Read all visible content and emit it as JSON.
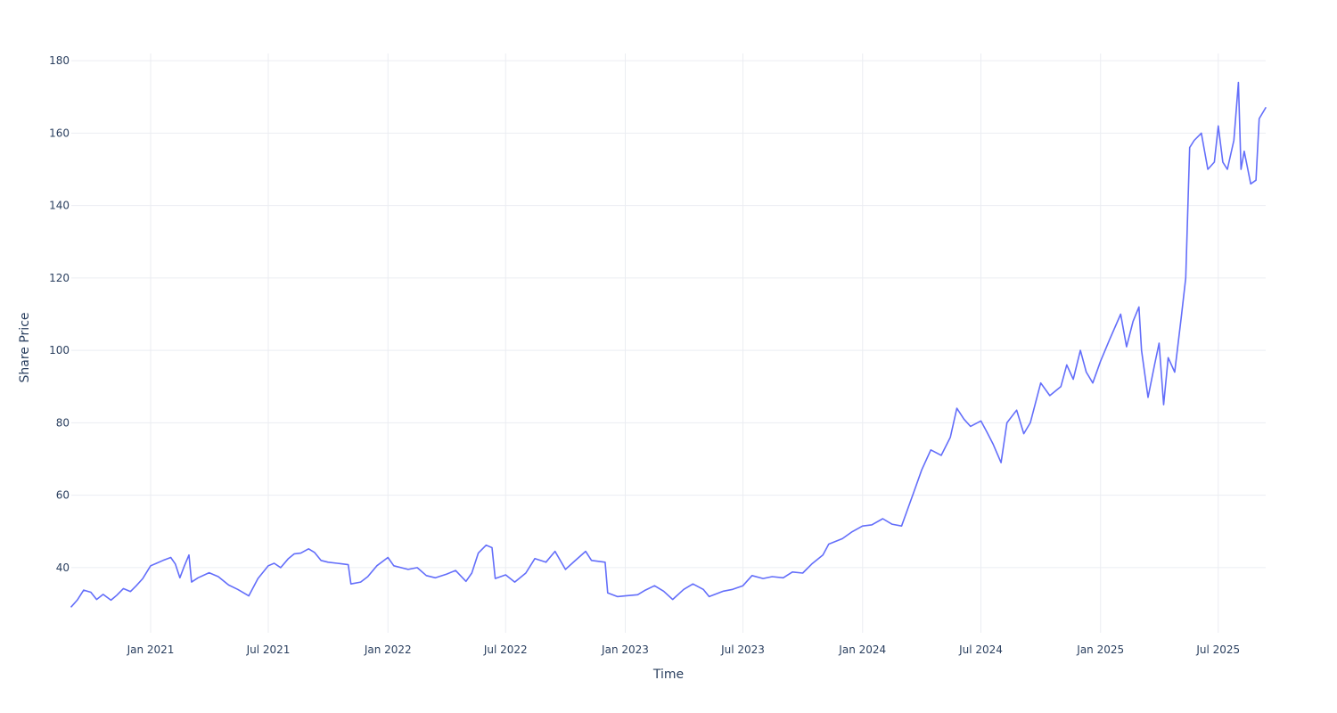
{
  "chart_data": {
    "type": "line",
    "title": "",
    "xlabel": "Time",
    "ylabel": "Share Price",
    "grid": true,
    "legend": "none",
    "xlim": [
      "2020-09-01",
      "2025-09-12"
    ],
    "ylim": [
      22,
      182
    ],
    "x_ticks": [
      {
        "date": "2021-01-01",
        "label": "Jan 2021"
      },
      {
        "date": "2021-07-01",
        "label": "Jul 2021"
      },
      {
        "date": "2022-01-01",
        "label": "Jan 2022"
      },
      {
        "date": "2022-07-01",
        "label": "Jul 2022"
      },
      {
        "date": "2023-01-01",
        "label": "Jan 2023"
      },
      {
        "date": "2023-07-01",
        "label": "Jul 2023"
      },
      {
        "date": "2024-01-01",
        "label": "Jan 2024"
      },
      {
        "date": "2024-07-01",
        "label": "Jul 2024"
      },
      {
        "date": "2025-01-01",
        "label": "Jan 2025"
      },
      {
        "date": "2025-07-01",
        "label": "Jul 2025"
      }
    ],
    "y_ticks": [
      40,
      60,
      80,
      100,
      120,
      140,
      160,
      180
    ],
    "series": [
      {
        "color": "#636efa",
        "points": [
          [
            "2020-09-01",
            29.2
          ],
          [
            "2020-09-10",
            31.0
          ],
          [
            "2020-09-20",
            33.8
          ],
          [
            "2020-10-01",
            33.2
          ],
          [
            "2020-10-10",
            31.2
          ],
          [
            "2020-10-20",
            32.6
          ],
          [
            "2020-11-01",
            31.0
          ],
          [
            "2020-11-10",
            32.4
          ],
          [
            "2020-11-20",
            34.2
          ],
          [
            "2020-12-01",
            33.4
          ],
          [
            "2020-12-10",
            35.0
          ],
          [
            "2020-12-20",
            37.0
          ],
          [
            "2021-01-01",
            40.5
          ],
          [
            "2021-01-10",
            41.2
          ],
          [
            "2021-01-20",
            42.0
          ],
          [
            "2021-02-01",
            42.8
          ],
          [
            "2021-02-08",
            41.0
          ],
          [
            "2021-02-15",
            37.2
          ],
          [
            "2021-02-22",
            40.5
          ],
          [
            "2021-03-01",
            43.5
          ],
          [
            "2021-03-05",
            36.0
          ],
          [
            "2021-03-15",
            37.2
          ],
          [
            "2021-04-01",
            38.6
          ],
          [
            "2021-04-15",
            37.5
          ],
          [
            "2021-05-01",
            35.2
          ],
          [
            "2021-05-15",
            34.0
          ],
          [
            "2021-06-01",
            32.2
          ],
          [
            "2021-06-15",
            37.0
          ],
          [
            "2021-07-01",
            40.5
          ],
          [
            "2021-07-10",
            41.2
          ],
          [
            "2021-07-20",
            40.0
          ],
          [
            "2021-08-01",
            42.5
          ],
          [
            "2021-08-10",
            43.8
          ],
          [
            "2021-08-20",
            44.0
          ],
          [
            "2021-09-01",
            45.2
          ],
          [
            "2021-09-10",
            44.2
          ],
          [
            "2021-09-20",
            42.0
          ],
          [
            "2021-10-01",
            41.5
          ],
          [
            "2021-10-15",
            41.2
          ],
          [
            "2021-11-01",
            40.8
          ],
          [
            "2021-11-05",
            35.5
          ],
          [
            "2021-11-20",
            36.0
          ],
          [
            "2021-12-01",
            37.5
          ],
          [
            "2021-12-15",
            40.5
          ],
          [
            "2022-01-01",
            42.8
          ],
          [
            "2022-01-10",
            40.5
          ],
          [
            "2022-02-01",
            39.5
          ],
          [
            "2022-02-15",
            40.0
          ],
          [
            "2022-03-01",
            37.8
          ],
          [
            "2022-03-15",
            37.2
          ],
          [
            "2022-04-01",
            38.2
          ],
          [
            "2022-04-15",
            39.2
          ],
          [
            "2022-05-01",
            36.2
          ],
          [
            "2022-05-10",
            38.5
          ],
          [
            "2022-05-20",
            44.0
          ],
          [
            "2022-06-01",
            46.2
          ],
          [
            "2022-06-10",
            45.5
          ],
          [
            "2022-06-15",
            37.0
          ],
          [
            "2022-07-01",
            38.0
          ],
          [
            "2022-07-15",
            36.0
          ],
          [
            "2022-08-01",
            38.5
          ],
          [
            "2022-08-15",
            42.5
          ],
          [
            "2022-09-01",
            41.5
          ],
          [
            "2022-09-15",
            44.5
          ],
          [
            "2022-10-01",
            39.5
          ],
          [
            "2022-10-15",
            41.8
          ],
          [
            "2022-11-01",
            44.5
          ],
          [
            "2022-11-10",
            42.0
          ],
          [
            "2022-12-01",
            41.5
          ],
          [
            "2022-12-05",
            33.0
          ],
          [
            "2022-12-20",
            32.0
          ],
          [
            "2023-01-01",
            32.2
          ],
          [
            "2023-01-20",
            32.5
          ],
          [
            "2023-02-01",
            33.8
          ],
          [
            "2023-02-15",
            35.0
          ],
          [
            "2023-03-01",
            33.5
          ],
          [
            "2023-03-15",
            31.2
          ],
          [
            "2023-04-01",
            34.0
          ],
          [
            "2023-04-15",
            35.5
          ],
          [
            "2023-05-01",
            34.0
          ],
          [
            "2023-05-10",
            32.0
          ],
          [
            "2023-06-01",
            33.5
          ],
          [
            "2023-06-15",
            34.0
          ],
          [
            "2023-07-01",
            35.0
          ],
          [
            "2023-07-15",
            37.8
          ],
          [
            "2023-08-01",
            37.0
          ],
          [
            "2023-08-15",
            37.5
          ],
          [
            "2023-09-01",
            37.2
          ],
          [
            "2023-09-15",
            38.8
          ],
          [
            "2023-10-01",
            38.5
          ],
          [
            "2023-10-15",
            41.0
          ],
          [
            "2023-11-01",
            43.5
          ],
          [
            "2023-11-10",
            46.5
          ],
          [
            "2023-12-01",
            48.0
          ],
          [
            "2023-12-15",
            49.8
          ],
          [
            "2024-01-01",
            51.5
          ],
          [
            "2024-01-15",
            51.8
          ],
          [
            "2024-02-01",
            53.5
          ],
          [
            "2024-02-15",
            52.0
          ],
          [
            "2024-03-01",
            51.5
          ],
          [
            "2024-03-10",
            56.0
          ],
          [
            "2024-03-20",
            61.0
          ],
          [
            "2024-04-01",
            67.0
          ],
          [
            "2024-04-15",
            72.5
          ],
          [
            "2024-05-01",
            71.0
          ],
          [
            "2024-05-15",
            76.0
          ],
          [
            "2024-05-25",
            84.0
          ],
          [
            "2024-06-05",
            81.0
          ],
          [
            "2024-06-15",
            79.0
          ],
          [
            "2024-07-01",
            80.5
          ],
          [
            "2024-07-10",
            77.5
          ],
          [
            "2024-07-20",
            74.0
          ],
          [
            "2024-08-01",
            69.0
          ],
          [
            "2024-08-10",
            80.0
          ],
          [
            "2024-08-25",
            83.5
          ],
          [
            "2024-09-05",
            77.0
          ],
          [
            "2024-09-15",
            80.0
          ],
          [
            "2024-10-01",
            91.0
          ],
          [
            "2024-10-15",
            87.5
          ],
          [
            "2024-11-01",
            90.0
          ],
          [
            "2024-11-10",
            96.0
          ],
          [
            "2024-11-20",
            92.0
          ],
          [
            "2024-12-01",
            100.0
          ],
          [
            "2024-12-10",
            94.0
          ],
          [
            "2024-12-20",
            91.0
          ],
          [
            "2025-01-01",
            97.0
          ],
          [
            "2025-01-15",
            103.0
          ],
          [
            "2025-02-01",
            110.0
          ],
          [
            "2025-02-10",
            101.0
          ],
          [
            "2025-02-20",
            108.0
          ],
          [
            "2025-03-01",
            112.0
          ],
          [
            "2025-03-05",
            100.0
          ],
          [
            "2025-03-15",
            87.0
          ],
          [
            "2025-03-25",
            96.0
          ],
          [
            "2025-04-01",
            102.0
          ],
          [
            "2025-04-08",
            85.0
          ],
          [
            "2025-04-15",
            98.0
          ],
          [
            "2025-04-25",
            94.0
          ],
          [
            "2025-05-05",
            109.0
          ],
          [
            "2025-05-12",
            120.0
          ],
          [
            "2025-05-18",
            156.0
          ],
          [
            "2025-05-25",
            158.0
          ],
          [
            "2025-06-05",
            160.0
          ],
          [
            "2025-06-15",
            150.0
          ],
          [
            "2025-06-25",
            152.0
          ],
          [
            "2025-07-01",
            162.0
          ],
          [
            "2025-07-08",
            152.0
          ],
          [
            "2025-07-15",
            150.0
          ],
          [
            "2025-07-25",
            158.0
          ],
          [
            "2025-08-01",
            174.0
          ],
          [
            "2025-08-05",
            150.0
          ],
          [
            "2025-08-10",
            155.0
          ],
          [
            "2025-08-20",
            146.0
          ],
          [
            "2025-08-28",
            147.0
          ],
          [
            "2025-09-02",
            164.0
          ],
          [
            "2025-09-12",
            167.0
          ]
        ]
      }
    ]
  }
}
